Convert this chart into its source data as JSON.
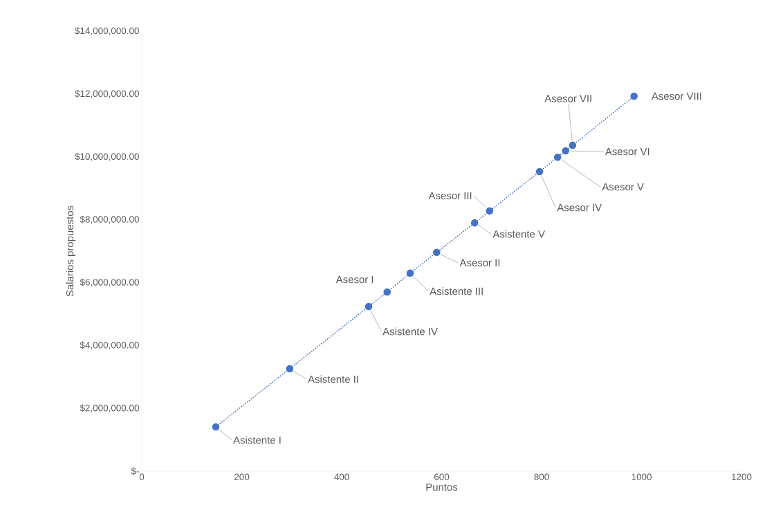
{
  "chart_data": {
    "type": "line",
    "xlabel": "Puntos",
    "ylabel": "Salarios propuestos",
    "x": [
      148,
      296,
      454,
      491,
      537,
      590,
      666,
      696,
      796,
      832,
      848,
      862,
      985
    ],
    "series": [
      {
        "color": "#4472c4",
        "values": [
          1410000,
          3260000,
          5240000,
          5700000,
          6300000,
          6960000,
          7900000,
          8280000,
          9530000,
          9990000,
          10190000,
          10370000,
          11930000
        ]
      }
    ],
    "marker": "circle",
    "line_style": "dotted",
    "grid": false,
    "xlim": [
      0,
      1200
    ],
    "xticks": [
      0,
      200,
      400,
      600,
      800,
      1000,
      1200
    ],
    "ylim": [
      0,
      14000000
    ],
    "yticks": [
      {
        "value": 0,
        "label": "$-"
      },
      {
        "value": 2000000,
        "label": "$2,000,000.00"
      },
      {
        "value": 4000000,
        "label": "$4,000,000.00"
      },
      {
        "value": 6000000,
        "label": "$6,000,000.00"
      },
      {
        "value": 8000000,
        "label": "$8,000,000.00"
      },
      {
        "value": 10000000,
        "label": "$10,000,000.00"
      },
      {
        "value": 12000000,
        "label": "$12,000,000.00"
      },
      {
        "value": 14000000,
        "label": "$14,000,000.00"
      }
    ],
    "annotations": [
      {
        "text": "Asistente I",
        "x": 148,
        "y": 1410000
      },
      {
        "text": "Asistente II",
        "x": 296,
        "y": 3260000
      },
      {
        "text": "Asistente IV",
        "x": 454,
        "y": 5240000
      },
      {
        "text": "Asesor I",
        "x": 491,
        "y": 5700000
      },
      {
        "text": "Asistente III",
        "x": 537,
        "y": 6300000
      },
      {
        "text": "Asesor II",
        "x": 590,
        "y": 6960000
      },
      {
        "text": "Asistente V",
        "x": 666,
        "y": 7900000
      },
      {
        "text": "Asesor III",
        "x": 696,
        "y": 8280000
      },
      {
        "text": "Asesor IV",
        "x": 796,
        "y": 9530000
      },
      {
        "text": "Asesor V",
        "x": 832,
        "y": 9990000
      },
      {
        "text": "Asesor VI",
        "x": 848,
        "y": 10190000
      },
      {
        "text": "Asesor VII",
        "x": 862,
        "y": 10370000
      },
      {
        "text": "Asesor VIII",
        "x": 985,
        "y": 11930000
      }
    ]
  }
}
